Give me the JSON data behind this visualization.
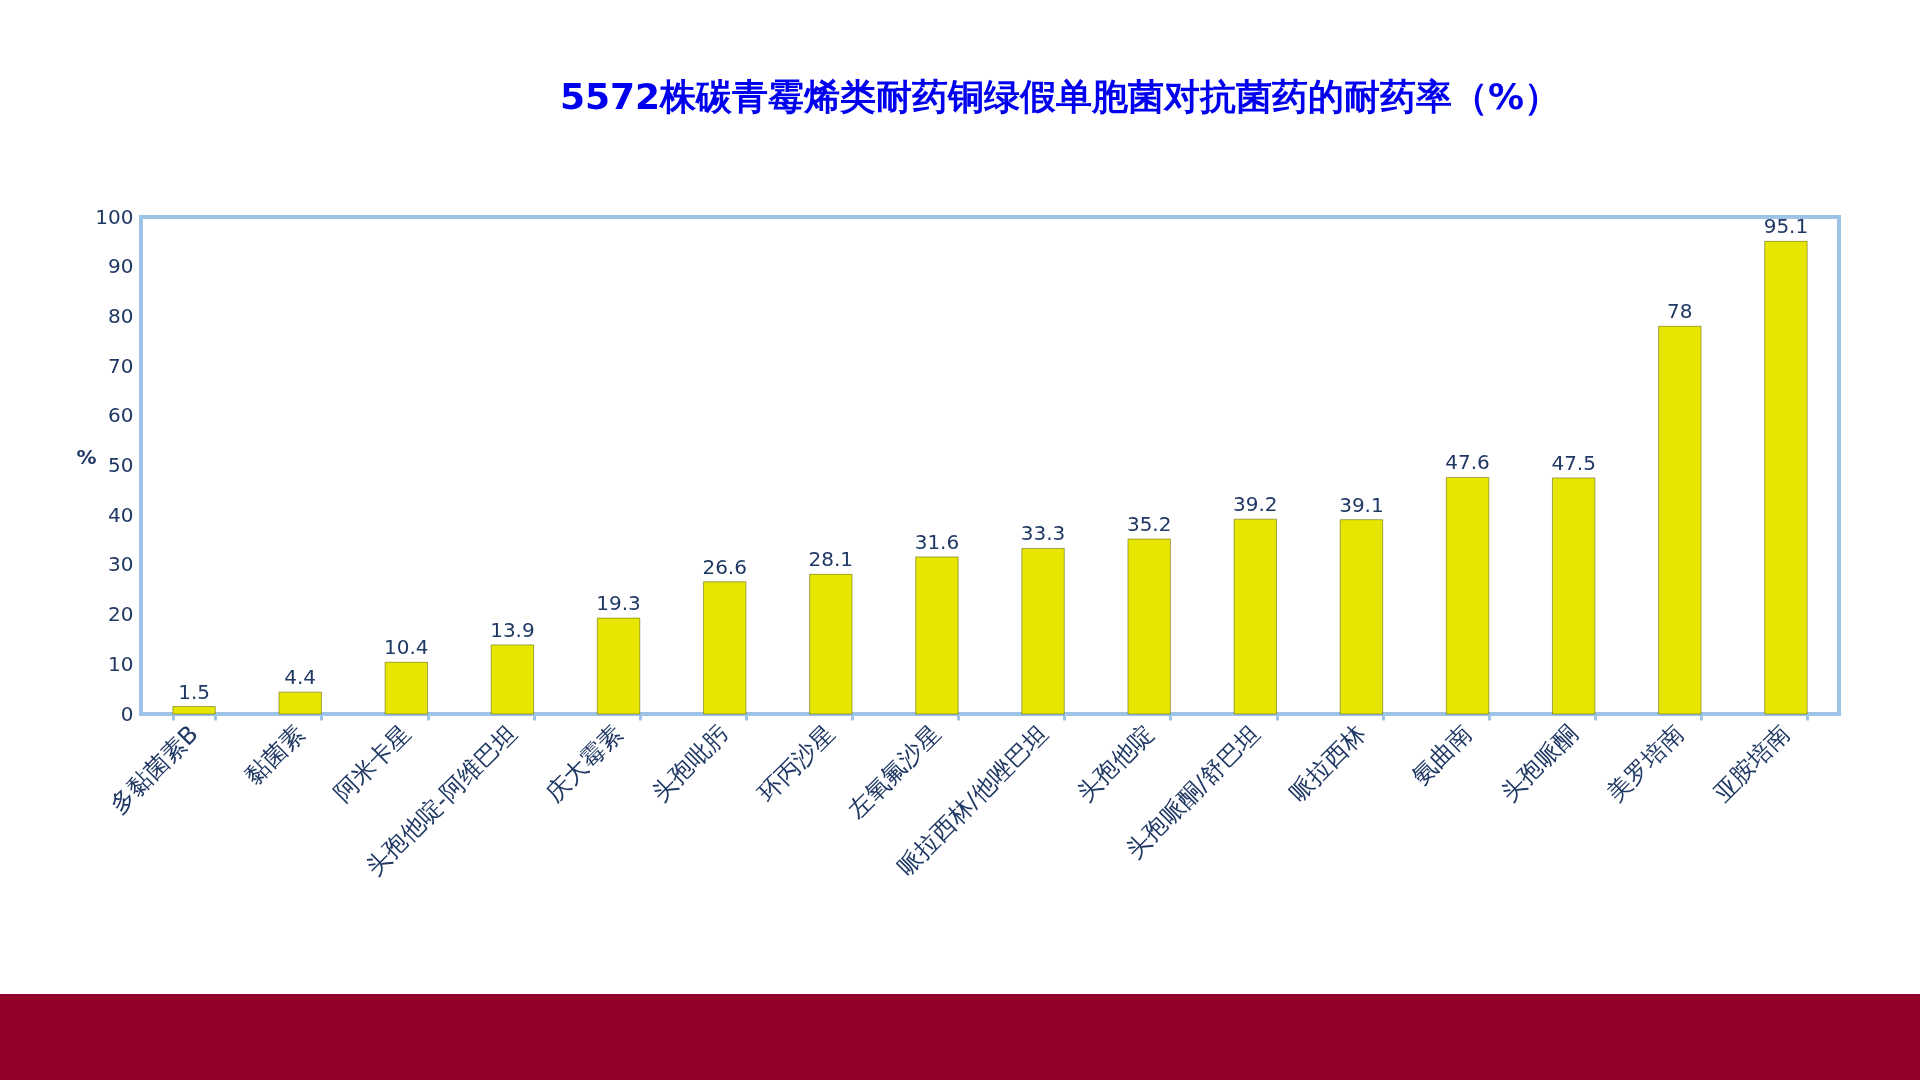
{
  "chart_data": {
    "type": "bar",
    "title": "5572株碳青霉烯类耐药铜绿假单胞菌对抗菌药的耐药率（%）",
    "ylabel": "%",
    "categories": [
      "多黏菌素B",
      "黏菌素",
      "阿米卡星",
      "头孢他啶-阿维巴坦",
      "庆大霉素",
      "头孢吡肟",
      "环丙沙星",
      "左氧氟沙星",
      "哌拉西林/他唑巴坦",
      "头孢他啶",
      "头孢哌酮/舒巴坦",
      "哌拉西林",
      "氨曲南",
      "头孢哌酮",
      "美罗培南",
      "亚胺培南"
    ],
    "values": [
      1.5,
      4.4,
      10.4,
      13.9,
      19.3,
      26.6,
      28.1,
      31.6,
      33.3,
      35.2,
      39.2,
      39.1,
      47.6,
      47.5,
      78,
      95.1
    ],
    "color": "#e6e600",
    "ylim": [
      0,
      100
    ],
    "yticks": [
      0,
      10,
      20,
      30,
      40,
      50,
      60,
      70,
      80,
      90,
      100
    ],
    "data_labels": true,
    "grid": false
  }
}
